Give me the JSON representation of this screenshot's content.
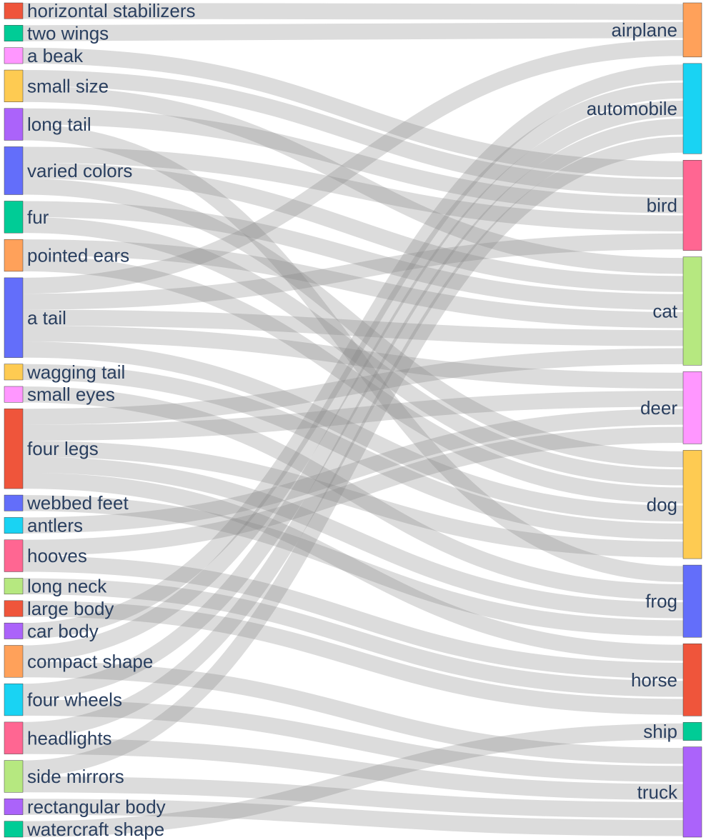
{
  "chart_data": {
    "type": "sankey",
    "title": "",
    "source_nodes": [
      {
        "name": "horizontal stabilizers",
        "color": "#ef553b"
      },
      {
        "name": "two wings",
        "color": "#00cc96"
      },
      {
        "name": "a beak",
        "color": "#ff97ff"
      },
      {
        "name": "small size",
        "color": "#fecb52"
      },
      {
        "name": "long tail",
        "color": "#ab63fa"
      },
      {
        "name": "varied colors",
        "color": "#636efa"
      },
      {
        "name": "fur",
        "color": "#00cc96"
      },
      {
        "name": "pointed ears",
        "color": "#ffa15a"
      },
      {
        "name": "a tail",
        "color": "#636efa"
      },
      {
        "name": "wagging tail",
        "color": "#fecb52"
      },
      {
        "name": "small eyes",
        "color": "#ff97ff"
      },
      {
        "name": "four legs",
        "color": "#ef553b"
      },
      {
        "name": "webbed feet",
        "color": "#636efa"
      },
      {
        "name": "antlers",
        "color": "#19d3f3"
      },
      {
        "name": "hooves",
        "color": "#ff6692"
      },
      {
        "name": "long neck",
        "color": "#b6e880"
      },
      {
        "name": "large body",
        "color": "#ef553b"
      },
      {
        "name": "car body",
        "color": "#ab63fa"
      },
      {
        "name": "compact shape",
        "color": "#ffa15a"
      },
      {
        "name": "four wheels",
        "color": "#19d3f3"
      },
      {
        "name": "headlights",
        "color": "#ff6692"
      },
      {
        "name": "side mirrors",
        "color": "#b6e880"
      },
      {
        "name": "rectangular body",
        "color": "#ab63fa"
      },
      {
        "name": "watercraft shape",
        "color": "#00cc96"
      }
    ],
    "target_nodes": [
      {
        "name": "airplane",
        "color": "#ffa15a"
      },
      {
        "name": "automobile",
        "color": "#19d3f3"
      },
      {
        "name": "bird",
        "color": "#ff6692"
      },
      {
        "name": "cat",
        "color": "#b6e880"
      },
      {
        "name": "deer",
        "color": "#ff97ff"
      },
      {
        "name": "dog",
        "color": "#fecb52"
      },
      {
        "name": "frog",
        "color": "#636efa"
      },
      {
        "name": "horse",
        "color": "#ef553b"
      },
      {
        "name": "ship",
        "color": "#00cc96"
      },
      {
        "name": "truck",
        "color": "#ab63fa"
      }
    ],
    "links": [
      {
        "source": "horizontal stabilizers",
        "target": "airplane",
        "value": 1
      },
      {
        "source": "two wings",
        "target": "airplane",
        "value": 1
      },
      {
        "source": "a tail",
        "target": "airplane",
        "value": 1
      },
      {
        "source": "four wheels",
        "target": "automobile",
        "value": 1
      },
      {
        "source": "headlights",
        "target": "automobile",
        "value": 1
      },
      {
        "source": "side mirrors",
        "target": "automobile",
        "value": 1
      },
      {
        "source": "car body",
        "target": "automobile",
        "value": 1
      },
      {
        "source": "compact shape",
        "target": "automobile",
        "value": 1
      },
      {
        "source": "a beak",
        "target": "bird",
        "value": 1
      },
      {
        "source": "small size",
        "target": "bird",
        "value": 1
      },
      {
        "source": "varied colors",
        "target": "bird",
        "value": 1
      },
      {
        "source": "long tail",
        "target": "bird",
        "value": 1
      },
      {
        "source": "a tail",
        "target": "bird",
        "value": 1
      },
      {
        "source": "fur",
        "target": "cat",
        "value": 1
      },
      {
        "source": "pointed ears",
        "target": "cat",
        "value": 1
      },
      {
        "source": "a tail",
        "target": "cat",
        "value": 1
      },
      {
        "source": "varied colors",
        "target": "cat",
        "value": 1
      },
      {
        "source": "small size",
        "target": "cat",
        "value": 1
      },
      {
        "source": "four legs",
        "target": "cat",
        "value": 1
      },
      {
        "source": "antlers",
        "target": "deer",
        "value": 1
      },
      {
        "source": "hooves",
        "target": "deer",
        "value": 1
      },
      {
        "source": "four legs",
        "target": "deer",
        "value": 1
      },
      {
        "source": "a tail",
        "target": "deer",
        "value": 1
      },
      {
        "source": "fur",
        "target": "dog",
        "value": 1
      },
      {
        "source": "wagging tail",
        "target": "dog",
        "value": 1
      },
      {
        "source": "four legs",
        "target": "dog",
        "value": 1
      },
      {
        "source": "pointed ears",
        "target": "dog",
        "value": 1
      },
      {
        "source": "varied colors",
        "target": "dog",
        "value": 1
      },
      {
        "source": "a tail",
        "target": "dog",
        "value": 1
      },
      {
        "source": "small eyes",
        "target": "frog",
        "value": 1
      },
      {
        "source": "webbed feet",
        "target": "frog",
        "value": 1
      },
      {
        "source": "long tail",
        "target": "frog",
        "value": 1
      },
      {
        "source": "four legs",
        "target": "frog",
        "value": 1
      },
      {
        "source": "hooves",
        "target": "horse",
        "value": 1
      },
      {
        "source": "long neck",
        "target": "horse",
        "value": 1
      },
      {
        "source": "large body",
        "target": "horse",
        "value": 1
      },
      {
        "source": "four legs",
        "target": "horse",
        "value": 1
      },
      {
        "source": "watercraft shape",
        "target": "ship",
        "value": 1
      },
      {
        "source": "four wheels",
        "target": "truck",
        "value": 1
      },
      {
        "source": "headlights",
        "target": "truck",
        "value": 1
      },
      {
        "source": "side mirrors",
        "target": "truck",
        "value": 1
      },
      {
        "source": "rectangular body",
        "target": "truck",
        "value": 1
      },
      {
        "source": "compact shape",
        "target": "truck",
        "value": 1
      }
    ]
  }
}
